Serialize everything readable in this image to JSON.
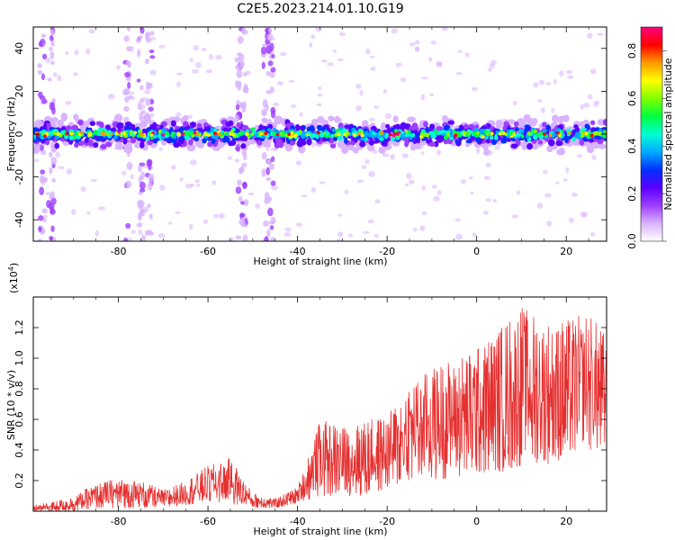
{
  "page": {
    "title": "C2E5.2023.214.01.10.G19"
  },
  "colors": {
    "snr_line": "#e53030",
    "frame": "#000000"
  },
  "chart_data": [
    {
      "id": "spectrogram",
      "type": "heatmap",
      "xlabel": "Height of straight line (km)",
      "ylabel": "Frequency (Hz)",
      "xlim": [
        -99,
        29
      ],
      "ylim": [
        -50,
        50
      ],
      "xticks": [
        -80,
        -60,
        -40,
        -20,
        0,
        20
      ],
      "xtick_labels": [
        "-80",
        "-60",
        "-40",
        "-20",
        "0",
        "20"
      ],
      "yticks": [
        -40,
        -20,
        0,
        20,
        40
      ],
      "ytick_labels": [
        "-40",
        "-20",
        "0",
        "20",
        "40"
      ],
      "colorbar": {
        "label": "Normalized spectral amplitude",
        "range": [
          0.0,
          0.9
        ],
        "ticks": [
          0.0,
          0.2,
          0.4,
          0.6,
          0.8
        ],
        "tick_labels": [
          "0.0",
          "0.2",
          "0.4",
          "0.6",
          "0.8"
        ],
        "colormap": [
          "#ffffff",
          "#d9b3ff",
          "#9d3dff",
          "#5a00ff",
          "#0030ff",
          "#00aaff",
          "#00ffd0",
          "#00ff40",
          "#80ff00",
          "#ffff00",
          "#ff9900",
          "#ff0000",
          "#ff0080"
        ]
      },
      "band_center_hz": 0,
      "band_halfwidth_hz": 5,
      "streaks_x": [
        -97,
        -95,
        -78,
        -75,
        -73,
        -53,
        -52,
        -47,
        -46
      ]
    },
    {
      "id": "snr",
      "type": "line",
      "xlabel": "Height of straight line (km)",
      "ylabel": "SNR (10 * v/v)",
      "y_multiplier_label": "(x10",
      "y_multiplier_exp": "4",
      "y_multiplier_close": ")",
      "xlim": [
        -99,
        29
      ],
      "ylim": [
        0.0,
        1.4
      ],
      "xticks": [
        -80,
        -60,
        -40,
        -20,
        0,
        20
      ],
      "xtick_labels": [
        "-80",
        "-60",
        "-40",
        "-20",
        "0",
        "20"
      ],
      "yticks": [
        0.2,
        0.4,
        0.6,
        0.8,
        1.0,
        1.2
      ],
      "ytick_labels": [
        "0.2",
        "0.4",
        "0.6",
        "0.8",
        "1.0",
        "1.2"
      ],
      "series": [
        {
          "envelope_x": [
            -99,
            -95,
            -90,
            -85,
            -80,
            -75,
            -70,
            -65,
            -60,
            -55,
            -50,
            -45,
            -40,
            -35,
            -30,
            -25,
            -20,
            -15,
            -10,
            -5,
            0,
            5,
            10,
            15,
            20,
            25,
            29
          ],
          "envelope_min": [
            0.0,
            0.0,
            0.0,
            0.02,
            0.02,
            0.02,
            0.02,
            0.04,
            0.06,
            0.05,
            0.02,
            0.02,
            0.05,
            0.1,
            0.1,
            0.1,
            0.15,
            0.2,
            0.2,
            0.22,
            0.25,
            0.25,
            0.3,
            0.3,
            0.35,
            0.4,
            0.4
          ],
          "envelope_max": [
            0.04,
            0.06,
            0.1,
            0.18,
            0.22,
            0.2,
            0.14,
            0.2,
            0.3,
            0.35,
            0.12,
            0.08,
            0.16,
            0.6,
            0.56,
            0.6,
            0.62,
            0.85,
            0.95,
            1.0,
            1.08,
            1.2,
            1.35,
            1.25,
            1.25,
            1.3,
            1.15
          ]
        }
      ]
    }
  ]
}
